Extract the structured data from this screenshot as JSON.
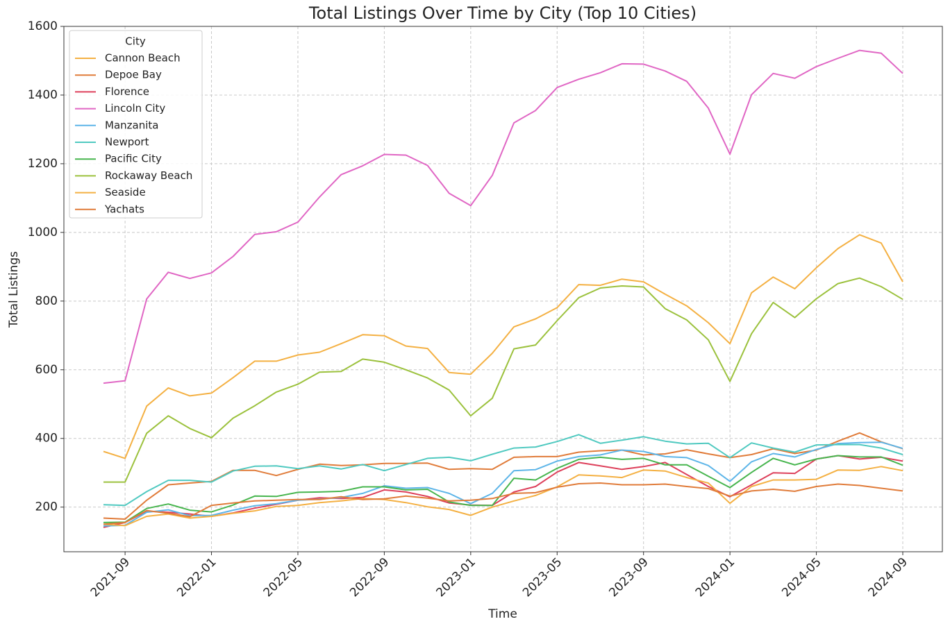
{
  "chart_data": {
    "type": "line",
    "title": "Total Listings Over Time by City (Top 10 Cities)",
    "xlabel": "Time",
    "ylabel": "Total Listings",
    "legend_title": "City",
    "legend": "upper left",
    "grid": true,
    "x": [
      "2021-08",
      "2021-09",
      "2021-10",
      "2021-11",
      "2021-12",
      "2022-01",
      "2022-02",
      "2022-03",
      "2022-04",
      "2022-05",
      "2022-06",
      "2022-07",
      "2022-08",
      "2022-09",
      "2022-10",
      "2022-11",
      "2022-12",
      "2023-01",
      "2023-02",
      "2023-03",
      "2023-04",
      "2023-05",
      "2023-06",
      "2023-07",
      "2023-08",
      "2023-09",
      "2023-10",
      "2023-11",
      "2023-12",
      "2024-01",
      "2024-02",
      "2024-03",
      "2024-04",
      "2024-05",
      "2024-06",
      "2024-07",
      "2024-08",
      "2024-09"
    ],
    "xticks": [
      "2021-09",
      "2022-01",
      "2022-05",
      "2022-09",
      "2023-01",
      "2023-05",
      "2023-09",
      "2024-01",
      "2024-05",
      "2024-09"
    ],
    "ylim": [
      70,
      1600
    ],
    "yticks": [
      200,
      400,
      600,
      800,
      1000,
      1200,
      1400,
      1600
    ],
    "series": [
      {
        "name": "Cannon Beach",
        "color": "#f4b042",
        "values": [
          362,
          342,
          494,
          547,
          524,
          532,
          577,
          625,
          625,
          643,
          651,
          676,
          702,
          699,
          669,
          662,
          592,
          587,
          648,
          725,
          748,
          781,
          848,
          846,
          864,
          856,
          820,
          786,
          737,
          676,
          824,
          870,
          836,
          897,
          953,
          993,
          969,
          856
        ]
      },
      {
        "name": "Depoe Bay",
        "color": "#e07b39",
        "values": [
          168,
          165,
          220,
          265,
          270,
          275,
          307,
          307,
          292,
          310,
          325,
          321,
          323,
          327,
          327,
          328,
          310,
          312,
          310,
          345,
          347,
          347,
          360,
          364,
          366,
          352,
          355,
          367,
          355,
          344,
          353,
          370,
          356,
          366,
          392,
          416,
          390,
          370
        ]
      },
      {
        "name": "Florence",
        "color": "#dd3f5a",
        "values": [
          141,
          155,
          188,
          185,
          180,
          173,
          183,
          197,
          208,
          220,
          227,
          225,
          228,
          250,
          244,
          231,
          212,
          206,
          205,
          244,
          260,
          302,
          330,
          320,
          310,
          318,
          330,
          295,
          260,
          230,
          265,
          300,
          298,
          340,
          350,
          340,
          345,
          334
        ]
      },
      {
        "name": "Lincoln City",
        "color": "#e066c4",
        "values": [
          561,
          568,
          806,
          884,
          866,
          882,
          930,
          994,
          1002,
          1030,
          1103,
          1168,
          1194,
          1227,
          1225,
          1195,
          1114,
          1078,
          1166,
          1319,
          1355,
          1422,
          1446,
          1465,
          1491,
          1490,
          1470,
          1440,
          1362,
          1228,
          1401,
          1463,
          1449,
          1483,
          1507,
          1530,
          1522,
          1463
        ]
      },
      {
        "name": "Manzanita",
        "color": "#5db5e8",
        "values": [
          145,
          147,
          185,
          192,
          175,
          176,
          191,
          204,
          210,
          220,
          223,
          228,
          240,
          262,
          255,
          257,
          240,
          210,
          240,
          306,
          309,
          334,
          347,
          352,
          366,
          362,
          347,
          344,
          321,
          275,
          332,
          356,
          346,
          368,
          385,
          388,
          389,
          371
        ]
      },
      {
        "name": "Newport",
        "color": "#4fc9c0",
        "values": [
          207,
          205,
          245,
          278,
          278,
          273,
          305,
          319,
          320,
          312,
          320,
          311,
          324,
          306,
          324,
          342,
          345,
          335,
          354,
          372,
          375,
          391,
          411,
          386,
          395,
          405,
          392,
          384,
          386,
          344,
          387,
          372,
          360,
          381,
          382,
          382,
          372,
          353
        ]
      },
      {
        "name": "Pacific City",
        "color": "#47b54e",
        "values": [
          155,
          156,
          196,
          209,
          191,
          186,
          206,
          232,
          231,
          243,
          244,
          246,
          259,
          259,
          250,
          252,
          215,
          205,
          205,
          284,
          279,
          313,
          339,
          345,
          339,
          342,
          323,
          323,
          290,
          257,
          301,
          342,
          323,
          340,
          350,
          346,
          346,
          322
        ]
      },
      {
        "name": "Rockaway Beach",
        "color": "#9bc13c",
        "values": [
          273,
          273,
          415,
          466,
          429,
          402,
          459,
          495,
          535,
          558,
          593,
          595,
          631,
          622,
          600,
          576,
          541,
          466,
          517,
          661,
          672,
          743,
          810,
          838,
          844,
          841,
          778,
          745,
          687,
          566,
          705,
          796,
          752,
          807,
          851,
          867,
          842,
          805
        ]
      },
      {
        "name": "Seaside",
        "color": "#f4b042",
        "values": [
          150,
          146,
          173,
          180,
          168,
          173,
          182,
          189,
          202,
          205,
          213,
          218,
          225,
          222,
          213,
          201,
          193,
          176,
          200,
          218,
          234,
          259,
          294,
          291,
          286,
          308,
          305,
          286,
          270,
          211,
          260,
          279,
          279,
          281,
          308,
          307,
          318,
          306
        ]
      },
      {
        "name": "Yachats",
        "color": "#e07b39",
        "values": [
          150,
          155,
          190,
          182,
          172,
          205,
          212,
          218,
          220,
          222,
          222,
          230,
          222,
          224,
          232,
          226,
          218,
          220,
          225,
          240,
          242,
          258,
          268,
          270,
          265,
          265,
          267,
          260,
          254,
          232,
          247,
          252,
          246,
          260,
          267,
          263,
          255,
          247
        ]
      }
    ]
  }
}
